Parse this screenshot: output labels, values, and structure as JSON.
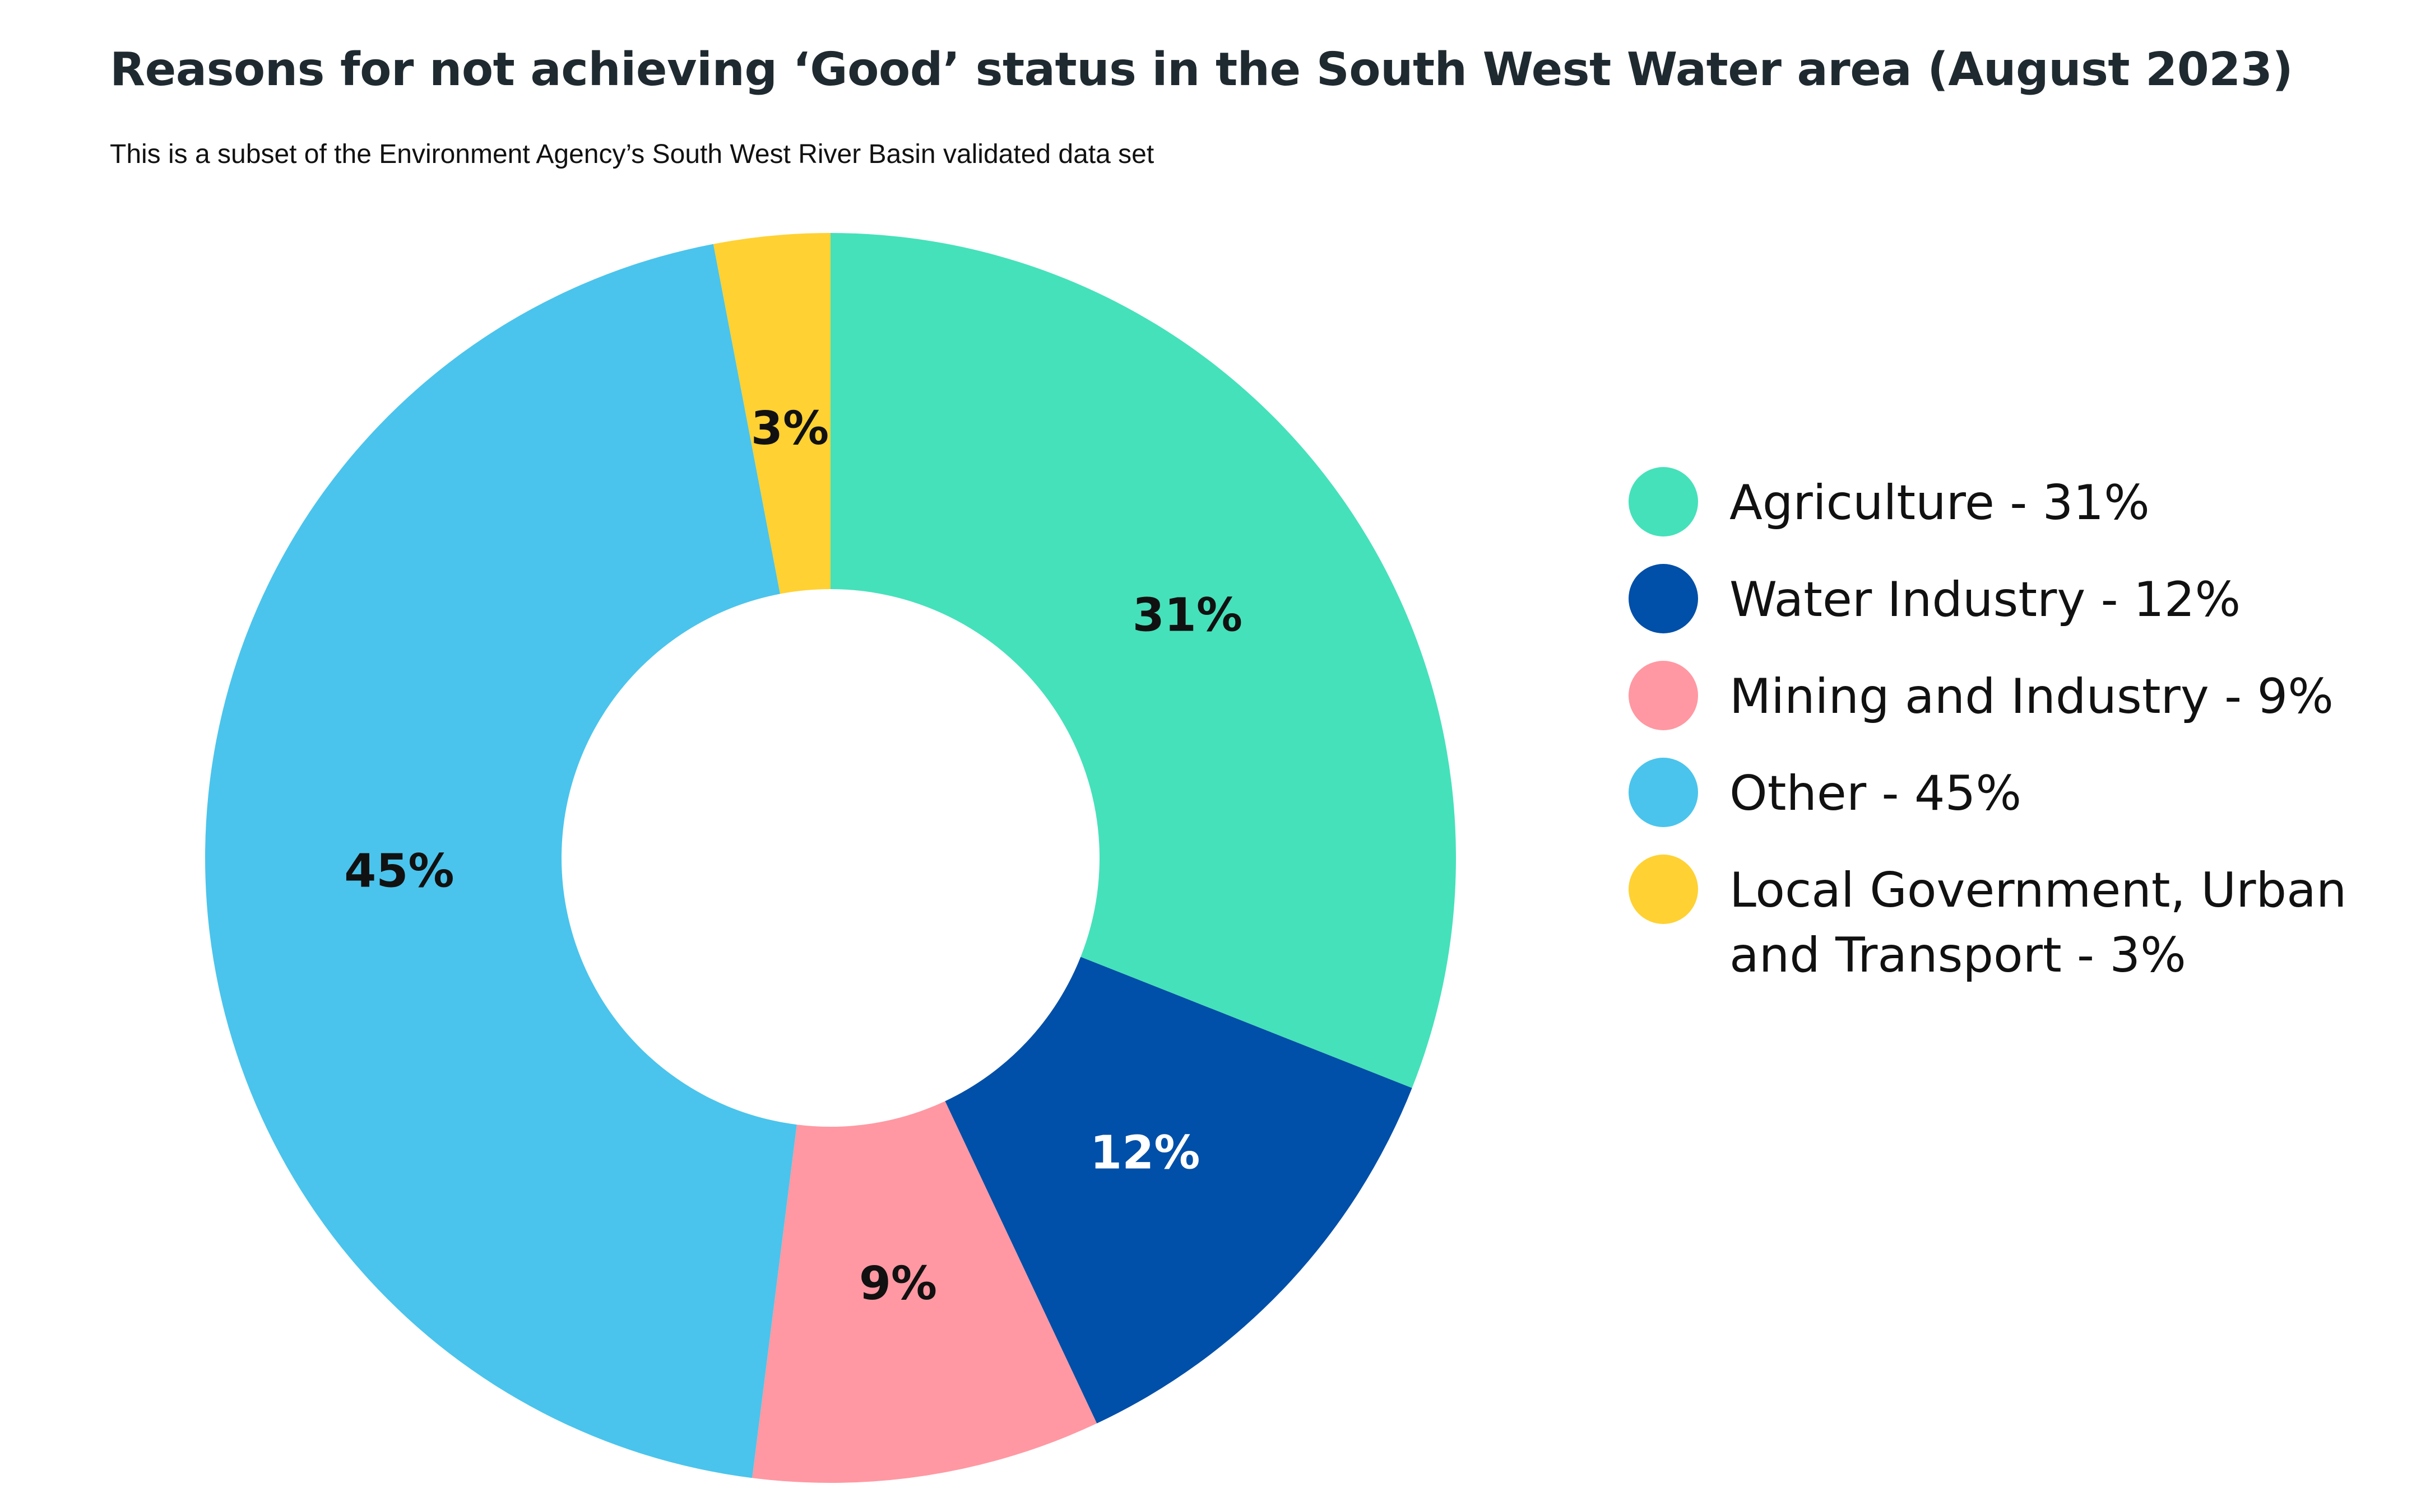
{
  "title": "Reasons for not achieving ‘Good’ status in the South West Water area (August 2023)",
  "subtitle": "This is a subset of the Environment Agency’s South West River Basin validated data set",
  "chart_data": {
    "type": "pie",
    "donut": true,
    "title": "Reasons for not achieving ‘Good’ status in the South West Water area (August 2023)",
    "subtitle": "This is a subset of the Environment Agency’s South West River Basin validated data set",
    "legend_position": "right",
    "slices": [
      {
        "name": "Agriculture",
        "value": 31,
        "label": "31%",
        "color": "#45E1BA",
        "label_color": "#111111",
        "legend": "Agriculture - 31%"
      },
      {
        "name": "Water Industry",
        "value": 12,
        "label": "12%",
        "color": "#004FA8",
        "label_color": "#ffffff",
        "legend": "Water Industry - 12%"
      },
      {
        "name": "Mining and Industry",
        "value": 9,
        "label": "9%",
        "color": "#FF98A2",
        "label_color": "#111111",
        "legend": "Mining and Industry - 9%"
      },
      {
        "name": "Other",
        "value": 45,
        "label": "45%",
        "color": "#4AC4EC",
        "label_color": "#111111",
        "legend": "Other - 45%"
      },
      {
        "name": "Local Government, Urban and Transport",
        "value": 3,
        "label": "3%",
        "color": "#FFD133",
        "label_color": "#111111",
        "legend": "Local Government, Urban and Transport - 3%"
      }
    ]
  }
}
